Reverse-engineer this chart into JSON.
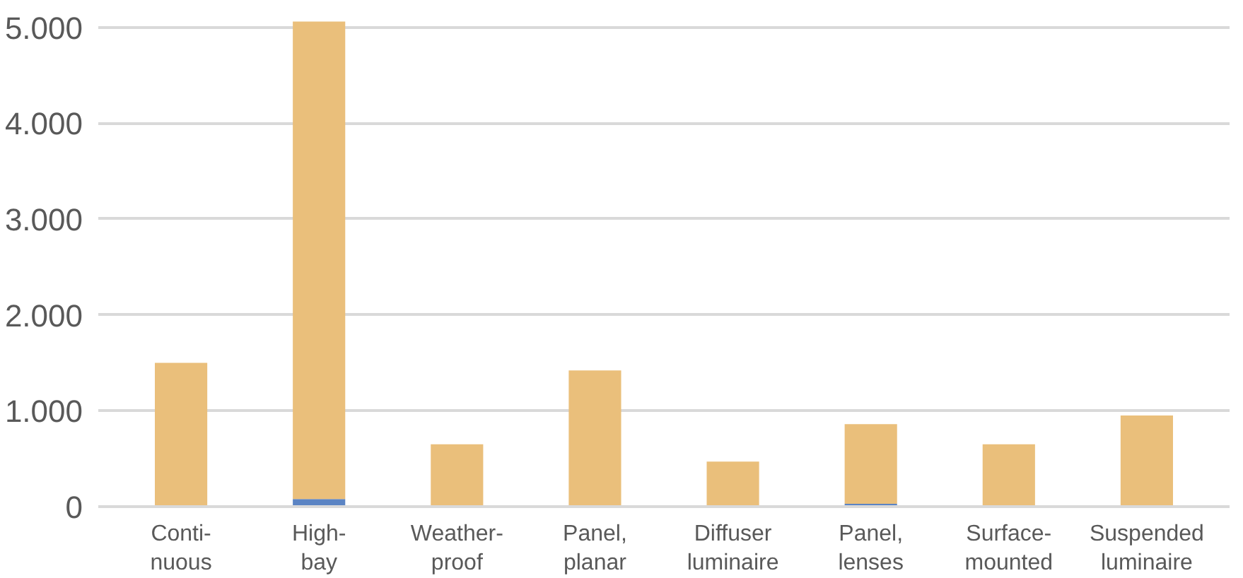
{
  "chart_data": {
    "type": "bar",
    "stacked": true,
    "categories": [
      "Conti-\nnuous",
      "High-\nbay",
      "Weather-\nproof",
      "Panel,\nplanar",
      "Diffuser\nluminaire",
      "Panel,\nlenses",
      "Surface-\nmounted",
      "Suspended\nluminaire"
    ],
    "series": [
      {
        "color": "#5b84c4",
        "values": [
          0,
          80,
          0,
          null,
          0,
          30,
          0,
          null
        ]
      },
      {
        "color": "#eabf7b",
        "values": [
          1500,
          4980,
          650,
          1420,
          470,
          830,
          650,
          950
        ]
      }
    ],
    "ylim": [
      0,
      5100
    ],
    "yticks": [
      0,
      {
        "value": 1000,
        "label": "1.000"
      },
      {
        "value": 2000,
        "label": "2.000"
      },
      {
        "value": 3000,
        "label": "3.000"
      },
      {
        "value": 4000,
        "label": "4.000"
      },
      {
        "value": 5000,
        "label": "5.000"
      }
    ],
    "grid": "y"
  }
}
